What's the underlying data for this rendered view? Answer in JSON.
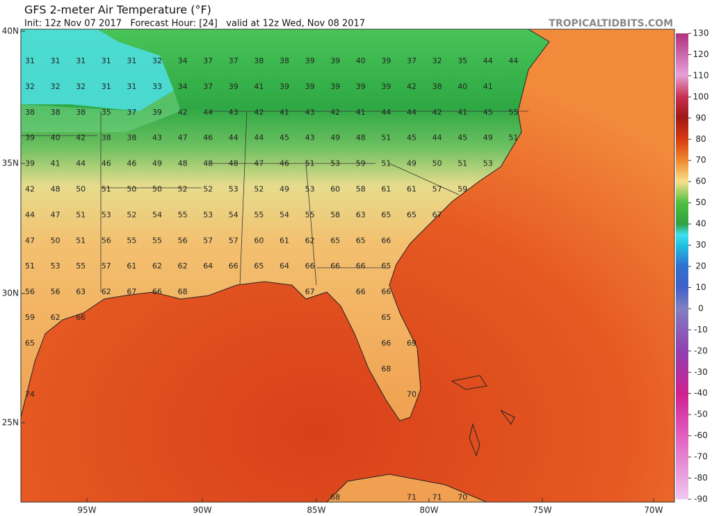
{
  "header": {
    "title": "GFS 2-meter Air Temperature (°F)",
    "subtitle": "Init: 12z Nov 07 2017   Forecast Hour: [24]   valid at 12z Wed, Nov 08 2017",
    "source": "TROPICALTIDBITS.COM"
  },
  "map": {
    "lat_labels": [
      "40N",
      "35N",
      "30N",
      "25N"
    ],
    "lon_labels": [
      "95W",
      "90W",
      "85W",
      "80W",
      "75W",
      "70W"
    ],
    "temperature_grid": [
      [
        31,
        31,
        31,
        31,
        31,
        32,
        34,
        37,
        37,
        38,
        38,
        39,
        39,
        40,
        39,
        37,
        32,
        35,
        44,
        44
      ],
      [
        32,
        32,
        32,
        31,
        31,
        33,
        34,
        37,
        39,
        41,
        39,
        39,
        39,
        39,
        39,
        42,
        38,
        40,
        41,
        null
      ],
      [
        38,
        38,
        38,
        35,
        37,
        39,
        42,
        44,
        43,
        42,
        41,
        43,
        42,
        41,
        44,
        44,
        42,
        41,
        45,
        55
      ],
      [
        39,
        40,
        42,
        38,
        38,
        43,
        47,
        46,
        44,
        44,
        45,
        43,
        49,
        48,
        51,
        45,
        44,
        45,
        49,
        51
      ],
      [
        39,
        41,
        44,
        46,
        46,
        49,
        48,
        48,
        48,
        47,
        46,
        51,
        53,
        59,
        51,
        49,
        50,
        51,
        53,
        null
      ],
      [
        42,
        48,
        50,
        51,
        50,
        50,
        52,
        52,
        53,
        52,
        49,
        53,
        60,
        58,
        61,
        61,
        57,
        59,
        null,
        null
      ],
      [
        44,
        47,
        51,
        53,
        52,
        54,
        55,
        53,
        54,
        55,
        54,
        55,
        58,
        63,
        65,
        65,
        67,
        null,
        null,
        null
      ],
      [
        47,
        50,
        51,
        56,
        55,
        55,
        56,
        57,
        57,
        60,
        61,
        62,
        65,
        65,
        66,
        null,
        null,
        null,
        null,
        null
      ],
      [
        51,
        53,
        55,
        57,
        61,
        62,
        62,
        64,
        66,
        65,
        64,
        66,
        66,
        66,
        65,
        null,
        null,
        null,
        null,
        null
      ],
      [
        56,
        56,
        63,
        62,
        67,
        66,
        68,
        null,
        null,
        null,
        null,
        67,
        null,
        66,
        66,
        null,
        null,
        null,
        null,
        null
      ],
      [
        59,
        62,
        66,
        null,
        null,
        null,
        null,
        null,
        null,
        null,
        null,
        null,
        null,
        null,
        65,
        null,
        null,
        null,
        null,
        null
      ],
      [
        65,
        null,
        null,
        null,
        null,
        null,
        null,
        null,
        null,
        null,
        null,
        null,
        null,
        null,
        66,
        69,
        null,
        null,
        null,
        null
      ],
      [
        null,
        null,
        null,
        null,
        null,
        null,
        null,
        null,
        null,
        null,
        null,
        null,
        null,
        null,
        68,
        null,
        null,
        null,
        null,
        null
      ],
      [
        74,
        null,
        null,
        null,
        null,
        null,
        null,
        null,
        null,
        null,
        null,
        null,
        null,
        null,
        null,
        70,
        null,
        null,
        null,
        null
      ],
      [
        null,
        null,
        null,
        null,
        null,
        null,
        null,
        null,
        null,
        null,
        null,
        null,
        null,
        null,
        null,
        null,
        null,
        null,
        null,
        null
      ],
      [
        null,
        null,
        null,
        null,
        null,
        null,
        null,
        null,
        null,
        null,
        null,
        null,
        null,
        null,
        null,
        null,
        null,
        null,
        null,
        null
      ],
      [
        null,
        null,
        null,
        null,
        null,
        null,
        null,
        null,
        null,
        null,
        null,
        null,
        null,
        null,
        null,
        null,
        null,
        null,
        null,
        null
      ],
      [
        null,
        null,
        null,
        null,
        null,
        null,
        null,
        null,
        null,
        null,
        null,
        null,
        68,
        null,
        null,
        71,
        71,
        70,
        null,
        null
      ]
    ]
  },
  "colorbar": {
    "ticks": [
      130,
      120,
      110,
      100,
      90,
      80,
      70,
      60,
      50,
      40,
      30,
      20,
      10,
      0,
      -10,
      -20,
      -30,
      -40,
      -50,
      -60,
      -70,
      -80,
      -90
    ]
  }
}
